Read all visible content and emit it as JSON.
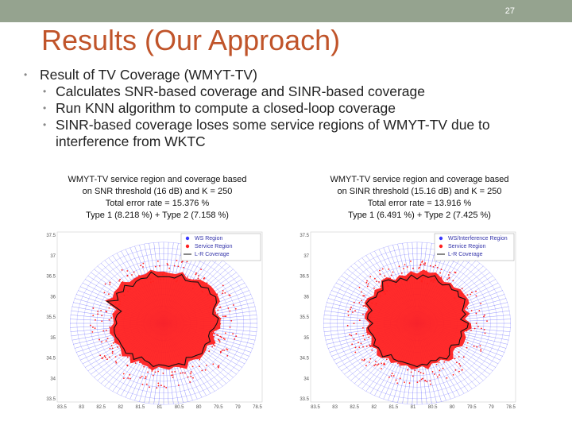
{
  "slide": {
    "page_number": "27",
    "title": "Results (Our Approach)",
    "bullet_main": "Result of TV Coverage (WMYT-TV)",
    "sub_bullets": [
      "Calculates SNR-based coverage and SINR-based coverage",
      "Run KNN algorithm to compute a closed-loop coverage",
      "SINR-based coverage loses some service regions of WMYT-TV due to interference from WKTC"
    ]
  },
  "figure_left": {
    "caption_lines": [
      "WMYT-TV service region and coverage based",
      "on SNR threshold (16 dB) and K = 250",
      "Total error rate = 15.376 %",
      "Type 1 (8.218 %) + Type 2 (7.158 %)"
    ],
    "legend": [
      "WS Region",
      "Service Region",
      "L-R Coverage"
    ],
    "y_ticks": [
      "37.5",
      "37",
      "36.5",
      "36",
      "35.5",
      "35",
      "34.5",
      "34",
      "33.5"
    ],
    "x_ticks": [
      "83.5",
      "83",
      "82.5",
      "82",
      "81.5",
      "81",
      "80.5",
      "80",
      "79.5",
      "79",
      "78.5"
    ]
  },
  "figure_right": {
    "caption_lines": [
      "WMYT-TV service region and coverage based",
      "on SINR threshold (15.16 dB) and K = 250",
      "Total error rate = 13.916 %",
      "Type 1 (6.491 %) + Type 2 (7.425 %)"
    ],
    "legend": [
      "WS/Interference Region",
      "Service Region",
      "L-R Coverage"
    ],
    "y_ticks": [
      "37.5",
      "37",
      "36.5",
      "36",
      "35.5",
      "35",
      "34.5",
      "34",
      "33.5"
    ],
    "x_ticks": [
      "83.5",
      "83",
      "82.5",
      "82",
      "81.5",
      "81",
      "80.5",
      "80",
      "79.5",
      "79",
      "78.5"
    ]
  },
  "colors": {
    "top_bar": "#95a38f",
    "title": "#c0542a",
    "ws_region": "#3a3aff",
    "service_region": "#ff2020",
    "coverage_line": "#111111"
  }
}
